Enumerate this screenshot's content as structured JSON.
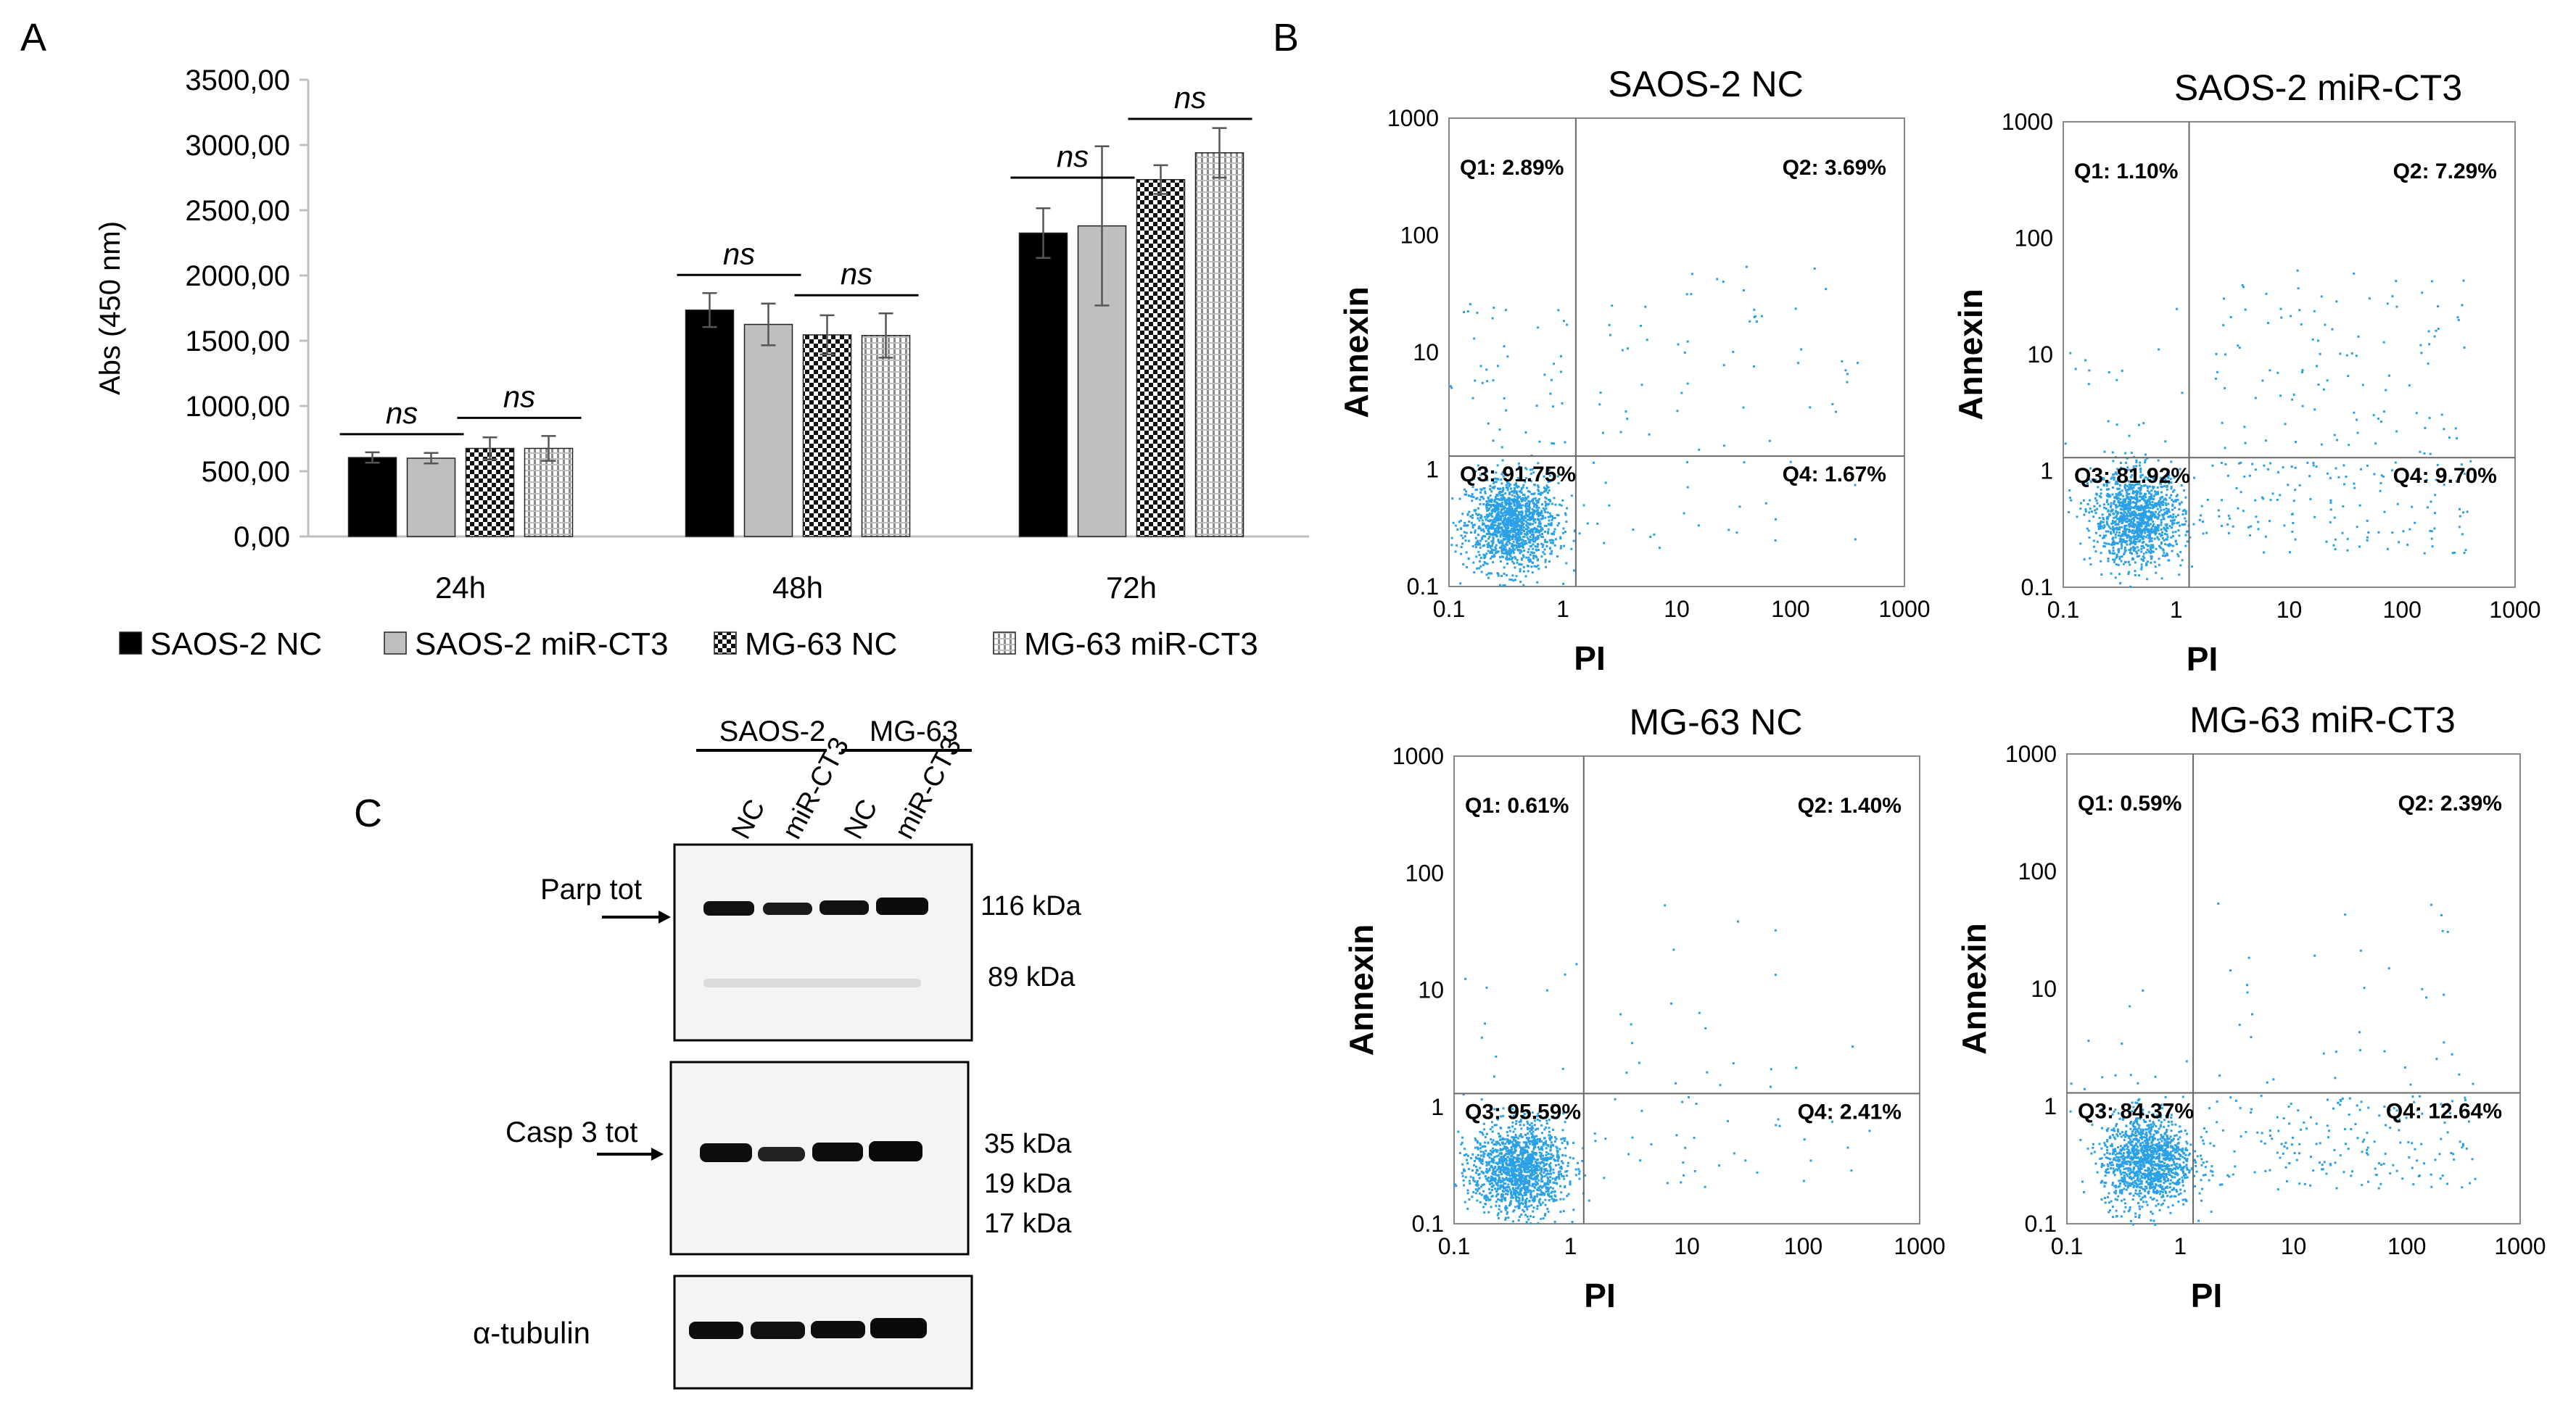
{
  "panel_labels": {
    "a": "A",
    "b": "B",
    "c": "C"
  },
  "colors": {
    "black_bar": "#000000",
    "gray_bar": "#bfbfbf",
    "dot": "#2aa0e6",
    "axis": "#444444",
    "blot_band": "#111111"
  },
  "chart_data": [
    {
      "type": "bar",
      "title": "",
      "xlabel": "",
      "ylabel": "Abs (450 nm)",
      "ylim": [
        0,
        3500
      ],
      "yticks": [
        "0,00",
        "500,00",
        "1000,00",
        "1500,00",
        "2000,00",
        "2500,00",
        "3000,00",
        "3500,00"
      ],
      "categories": [
        "24h",
        "48h",
        "72h"
      ],
      "series": [
        {
          "name": "SAOS-2 NC",
          "pattern": "solid-black",
          "values": [
            605,
            1735,
            2325
          ],
          "errors": [
            40,
            130,
            190
          ]
        },
        {
          "name": "SAOS-2 miR-CT3",
          "pattern": "solid-gray",
          "values": [
            600,
            1625,
            2380
          ],
          "errors": [
            40,
            160,
            610
          ]
        },
        {
          "name": "MG-63 NC",
          "pattern": "checker",
          "values": [
            675,
            1545,
            2735
          ],
          "errors": [
            85,
            150,
            110
          ]
        },
        {
          "name": "MG-63 miR-CT3",
          "pattern": "dots",
          "values": [
            675,
            1540,
            2940
          ],
          "errors": [
            95,
            170,
            190
          ]
        }
      ],
      "significance": [
        {
          "category": "24h",
          "pair": "saos",
          "label": "ns"
        },
        {
          "category": "24h",
          "pair": "mg",
          "label": "ns"
        },
        {
          "category": "48h",
          "pair": "saos",
          "label": "ns"
        },
        {
          "category": "48h",
          "pair": "mg",
          "label": "ns"
        },
        {
          "category": "72h",
          "pair": "saos",
          "label": "ns"
        },
        {
          "category": "72h",
          "pair": "mg",
          "label": "ns"
        }
      ],
      "legend_position": "bottom"
    },
    {
      "type": "scatter",
      "title": "SAOS-2 NC",
      "xlabel": "PI",
      "ylabel": "Annexin",
      "xscale": "log",
      "yscale": "log",
      "xlim": [
        0.1,
        1000
      ],
      "ylim": [
        0.1,
        1000
      ],
      "x_ticks": [
        "0.1",
        "1",
        "10",
        "100",
        "1000"
      ],
      "y_ticks": [
        "0.1",
        "1",
        "10",
        "100",
        "1000"
      ],
      "gate": {
        "x": 1.3,
        "y": 1.3
      },
      "quadrants": {
        "q1": "Q1: 2.89%",
        "q2": "Q2: 3.69%",
        "q3": "Q3: 91.75%",
        "q4": "Q4: 1.67%"
      },
      "quadrant_fractions": {
        "q1": 0.0289,
        "q2": 0.0369,
        "q3": 0.9175,
        "q4": 0.0167
      },
      "cluster": {
        "x": 0.35,
        "y": 0.35
      }
    },
    {
      "type": "scatter",
      "title": "SAOS-2 miR-CT3",
      "xlabel": "PI",
      "ylabel": "Annexin",
      "xscale": "log",
      "yscale": "log",
      "xlim": [
        0.1,
        1000
      ],
      "ylim": [
        0.1,
        1000
      ],
      "x_ticks": [
        "0.1",
        "1",
        "10",
        "100",
        "1000"
      ],
      "y_ticks": [
        "0.1",
        "1",
        "10",
        "100",
        "1000"
      ],
      "gate": {
        "x": 1.3,
        "y": 1.3
      },
      "quadrants": {
        "q1": "Q1: 1.10%",
        "q2": "Q2: 7.29%",
        "q3": "Q3: 81.92%",
        "q4": "Q4: 9.70%"
      },
      "quadrant_fractions": {
        "q1": 0.011,
        "q2": 0.0729,
        "q3": 0.8192,
        "q4": 0.097
      },
      "cluster": {
        "x": 0.45,
        "y": 0.4
      }
    },
    {
      "type": "scatter",
      "title": "MG-63 NC",
      "xlabel": "PI",
      "ylabel": "Annexin",
      "xscale": "log",
      "yscale": "log",
      "xlim": [
        0.1,
        1000
      ],
      "ylim": [
        0.1,
        1000
      ],
      "x_ticks": [
        "0.1",
        "1",
        "10",
        "100",
        "1000"
      ],
      "y_ticks": [
        "0.1",
        "1",
        "10",
        "100",
        "1000"
      ],
      "gate": {
        "x": 1.3,
        "y": 1.3
      },
      "quadrants": {
        "q1": "Q1: 0.61%",
        "q2": "Q2: 1.40%",
        "q3": "Q3: 95.59%",
        "q4": "Q4: 2.41%"
      },
      "quadrant_fractions": {
        "q1": 0.0061,
        "q2": 0.014,
        "q3": 0.9559,
        "q4": 0.0241
      },
      "cluster": {
        "x": 0.35,
        "y": 0.3
      }
    },
    {
      "type": "scatter",
      "title": "MG-63 miR-CT3",
      "xlabel": "PI",
      "ylabel": "Annexin",
      "xscale": "log",
      "yscale": "log",
      "xlim": [
        0.1,
        1000
      ],
      "ylim": [
        0.1,
        1000
      ],
      "x_ticks": [
        "0.1",
        "1",
        "10",
        "100",
        "1000"
      ],
      "y_ticks": [
        "0.1",
        "1",
        "10",
        "100",
        "1000"
      ],
      "gate": {
        "x": 1.3,
        "y": 1.3
      },
      "quadrants": {
        "q1": "Q1: 0.59%",
        "q2": "Q2: 2.39%",
        "q3": "Q3: 84.37%",
        "q4": "Q4: 12.64%"
      },
      "quadrant_fractions": {
        "q1": 0.0059,
        "q2": 0.0239,
        "q3": 0.8437,
        "q4": 0.1264
      },
      "cluster": {
        "x": 0.5,
        "y": 0.35
      }
    }
  ],
  "western_blot": {
    "groups": [
      {
        "label": "SAOS-2"
      },
      {
        "label": "MG-63"
      }
    ],
    "lanes": [
      "NC",
      "miR-CT3",
      "NC",
      "miR-CT3"
    ],
    "panels": [
      {
        "name": "Parp tot",
        "markers": [
          "116 kDa",
          "89 kDa"
        ]
      },
      {
        "name": "Casp 3 tot",
        "markers": [
          "35 kDa",
          "19 kDa",
          "17 kDa"
        ]
      },
      {
        "name": "α-tubulin",
        "markers": []
      }
    ]
  }
}
